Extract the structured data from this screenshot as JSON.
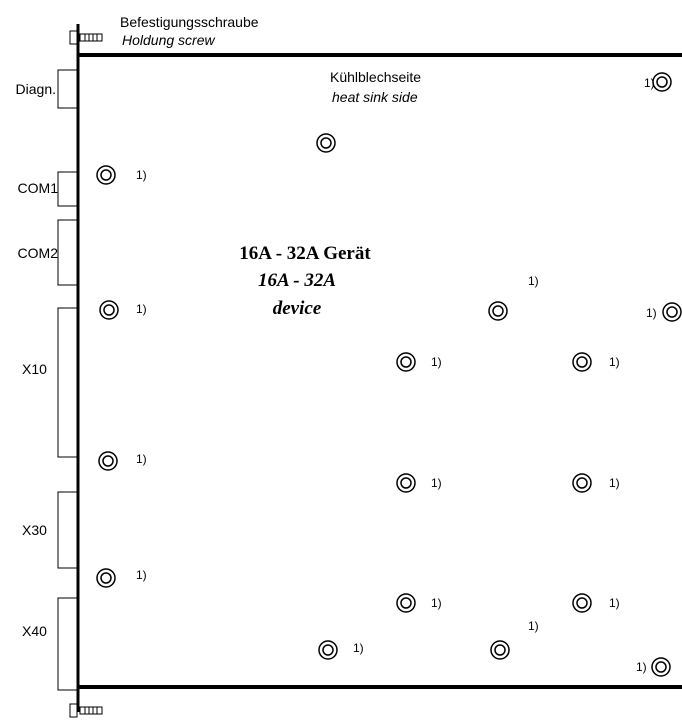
{
  "screw_label": {
    "de": "Befestigungsschraube",
    "en": "Holdung screw"
  },
  "heat_sink_label": {
    "de": "Kühlblechseite",
    "en": "heat sink side"
  },
  "device_label": {
    "line1": "16A - 32A Gerät",
    "line2": "16A - 32A",
    "line3": "device"
  },
  "connectors": {
    "diagn": "Diagn.",
    "com1": "COM1",
    "com2": "COM2",
    "x10": "X10",
    "x30": "X30",
    "x40": "X40"
  },
  "footnote_mark": "1)"
}
